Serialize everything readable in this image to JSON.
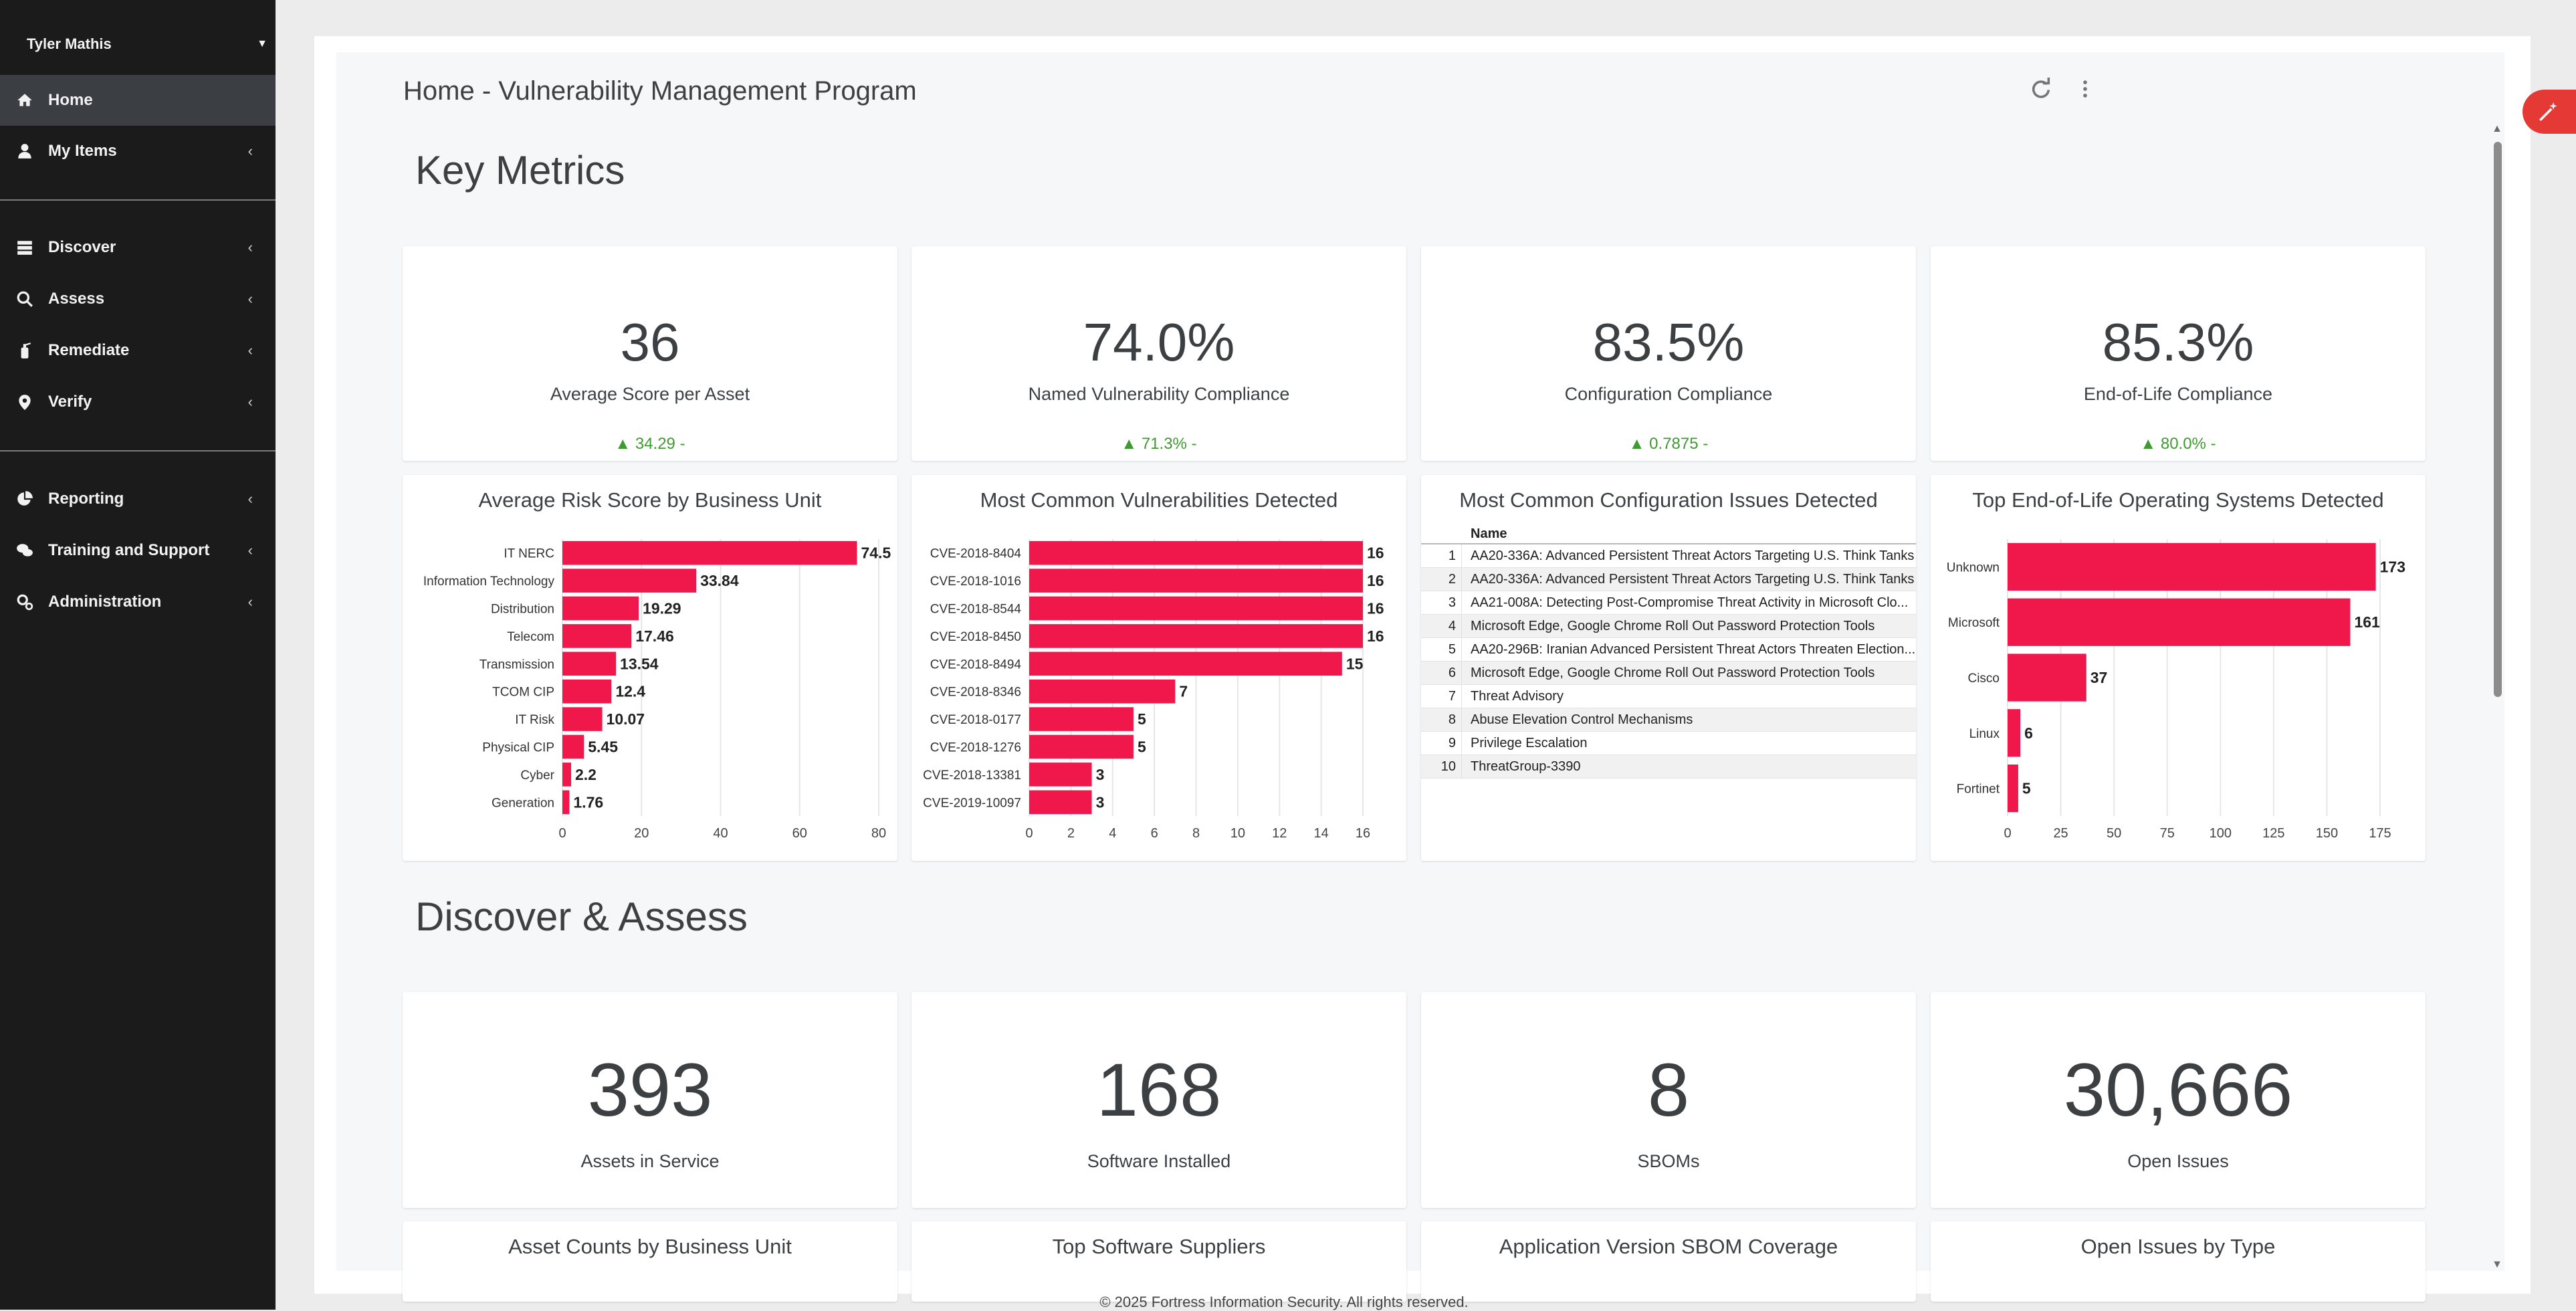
{
  "user": {
    "name": "Tyler Mathis"
  },
  "nav": {
    "home": "Home",
    "my_items": "My Items",
    "discover": "Discover",
    "assess": "Assess",
    "remediate": "Remediate",
    "verify": "Verify",
    "reporting": "Reporting",
    "training": "Training and Support",
    "administration": "Administration"
  },
  "page": {
    "title": "Home - Vulnerability Management Program"
  },
  "sections": {
    "key_metrics": "Key Metrics",
    "discover_assess": "Discover & Assess"
  },
  "kpis": [
    {
      "value": "36",
      "label": "Average Score per Asset",
      "delta": "▲ 34.29 -"
    },
    {
      "value": "74.0%",
      "label": "Named Vulnerability Compliance",
      "delta": "▲ 71.3% -"
    },
    {
      "value": "83.5%",
      "label": "Configuration Compliance",
      "delta": "▲ 0.7875 -"
    },
    {
      "value": "85.3%",
      "label": "End-of-Life Compliance",
      "delta": "▲ 80.0% -"
    }
  ],
  "kpis2": [
    {
      "value": "393",
      "label": "Assets in Service"
    },
    {
      "value": "168",
      "label": "Software Installed"
    },
    {
      "value": "8",
      "label": "SBOMs"
    },
    {
      "value": "30,666",
      "label": "Open Issues"
    }
  ],
  "bottom_cards": {
    "c1": "Asset Counts by Business Unit",
    "c2": "Top Software Suppliers",
    "c3": "Application Version SBOM Coverage",
    "c4": "Open Issues by Type"
  },
  "config_table": {
    "title": "Most Common Configuration Issues Detected",
    "column": "Name",
    "rows": [
      {
        "idx": "1",
        "name": "AA20-336A: Advanced Persistent Threat Actors Targeting U.S. Think Tanks"
      },
      {
        "idx": "2",
        "name": "AA20-336A: Advanced Persistent Threat Actors Targeting U.S. Think Tanks"
      },
      {
        "idx": "3",
        "name": "AA21-008A: Detecting Post-Compromise Threat Activity in Microsoft Clo..."
      },
      {
        "idx": "4",
        "name": "Microsoft Edge, Google Chrome Roll Out Password Protection Tools"
      },
      {
        "idx": "5",
        "name": "AA20-296B: Iranian Advanced Persistent Threat Actors Threaten Election..."
      },
      {
        "idx": "6",
        "name": "Microsoft Edge, Google Chrome Roll Out Password Protection Tools"
      },
      {
        "idx": "7",
        "name": "Threat Advisory"
      },
      {
        "idx": "8",
        "name": "Abuse Elevation Control Mechanisms"
      },
      {
        "idx": "9",
        "name": "Privilege Escalation"
      },
      {
        "idx": "10",
        "name": "ThreatGroup-3390"
      }
    ]
  },
  "chart_data": [
    {
      "type": "bar",
      "orientation": "horizontal",
      "title": "Average Risk Score by Business Unit",
      "categories": [
        "IT NERC",
        "Information Technology",
        "Distribution",
        "Telecom",
        "Transmission",
        "TCOM CIP",
        "IT Risk",
        "Physical CIP",
        "Cyber",
        "Generation"
      ],
      "values": [
        74.5,
        33.84,
        19.29,
        17.46,
        13.54,
        12.4,
        10.07,
        5.45,
        2.2,
        1.76
      ],
      "xlim": [
        0,
        80
      ],
      "ticks": [
        0,
        20,
        40,
        60,
        80
      ],
      "color": "#f0184a"
    },
    {
      "type": "bar",
      "orientation": "horizontal",
      "title": "Most Common Vulnerabilities Detected",
      "categories": [
        "CVE-2018-8404",
        "CVE-2018-1016",
        "CVE-2018-8544",
        "CVE-2018-8450",
        "CVE-2018-8494",
        "CVE-2018-8346",
        "CVE-2018-0177",
        "CVE-2018-1276",
        "CVE-2018-13381",
        "CVE-2019-10097"
      ],
      "values": [
        16,
        16,
        16,
        16,
        15,
        7,
        5,
        5,
        3,
        3
      ],
      "xlim": [
        0,
        16
      ],
      "ticks": [
        0,
        2,
        4,
        6,
        8,
        10,
        12,
        14,
        16
      ],
      "color": "#f0184a"
    },
    {
      "type": "bar",
      "orientation": "horizontal",
      "title": "Top End-of-Life Operating Systems Detected",
      "categories": [
        "Unknown",
        "Microsoft",
        "Cisco",
        "Linux",
        "Fortinet"
      ],
      "values": [
        173,
        161,
        37,
        6,
        5
      ],
      "xlim": [
        0,
        175
      ],
      "ticks": [
        0,
        25,
        50,
        75,
        100,
        125,
        150,
        175
      ],
      "color": "#f0184a"
    }
  ],
  "footer": "© 2025 Fortress Information Security. All rights reserved."
}
